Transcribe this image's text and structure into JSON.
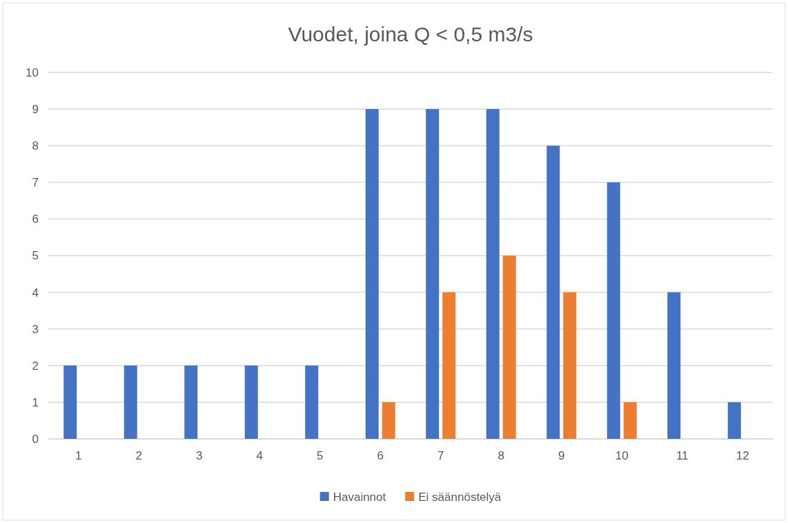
{
  "chart_data": {
    "type": "bar",
    "title": "Vuodet, joina Q < 0,5 m3/s",
    "categories": [
      "1",
      "2",
      "3",
      "4",
      "5",
      "6",
      "7",
      "8",
      "9",
      "10",
      "11",
      "12"
    ],
    "series": [
      {
        "name": "Havainnot",
        "color": "#4472c4",
        "values": [
          2,
          2,
          2,
          2,
          2,
          9,
          9,
          9,
          8,
          7,
          4,
          1
        ]
      },
      {
        "name": "Ei säännöstelyä",
        "color": "#ed7d31",
        "values": [
          0,
          0,
          0,
          0,
          0,
          1,
          4,
          5,
          4,
          1,
          0,
          0
        ]
      }
    ],
    "ylim": [
      0,
      10
    ],
    "yticks": [
      0,
      1,
      2,
      3,
      4,
      5,
      6,
      7,
      8,
      9,
      10
    ],
    "grid": "y",
    "legend": "bottom"
  }
}
